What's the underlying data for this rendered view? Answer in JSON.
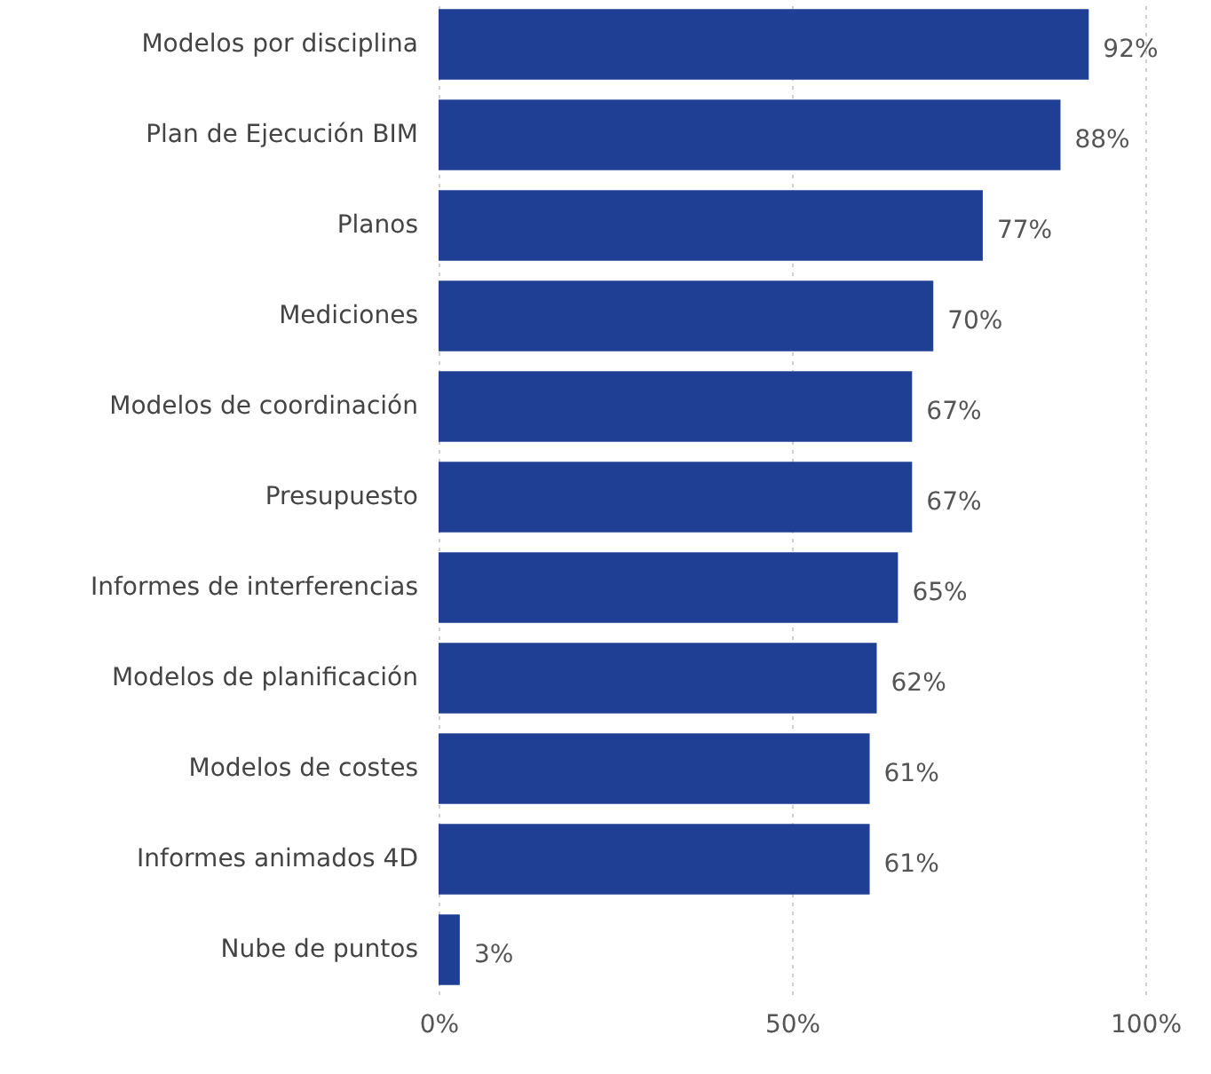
{
  "chart_data": {
    "type": "bar",
    "orientation": "horizontal",
    "categories": [
      "Modelos por disciplina",
      "Plan de Ejecución BIM",
      "Planos",
      "Mediciones",
      "Modelos de coordinación",
      "Presupuesto",
      "Informes de interferencias",
      "Modelos de planificación",
      "Modelos de costes",
      "Informes animados 4D",
      "Nube de puntos"
    ],
    "values": [
      92,
      88,
      77,
      70,
      67,
      67,
      65,
      62,
      61,
      61,
      3
    ],
    "value_labels": [
      "92%",
      "88%",
      "77%",
      "70%",
      "67%",
      "67%",
      "65%",
      "62%",
      "61%",
      "61%",
      "3%"
    ],
    "color": "#1f3f94",
    "xlim": [
      0,
      100
    ],
    "xticks": [
      {
        "value": 0,
        "label": "0%"
      },
      {
        "value": 50,
        "label": "50%"
      },
      {
        "value": 100,
        "label": "100%"
      }
    ],
    "grid": "x"
  }
}
